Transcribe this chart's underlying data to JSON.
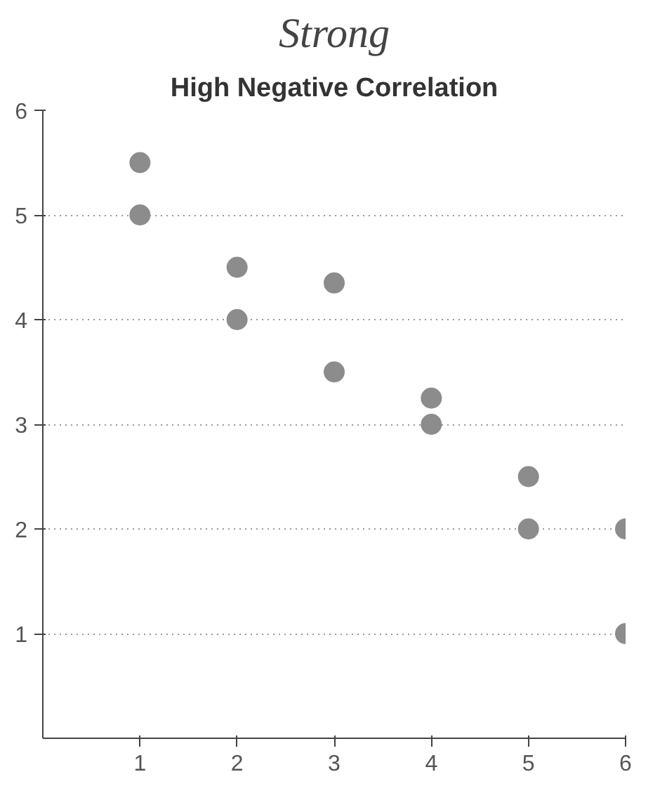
{
  "chart_data": {
    "type": "scatter",
    "title": "High Negative Correlation",
    "annotations": [
      "Strong"
    ],
    "x": [
      1,
      1,
      2,
      2,
      3,
      3,
      4,
      4,
      5,
      5,
      6,
      6
    ],
    "series": [
      {
        "color": "#8c8c8c",
        "values": [
          5.5,
          5,
          4.5,
          4,
          4.35,
          3.5,
          3.25,
          3,
          2.5,
          2,
          2,
          1
        ]
      }
    ],
    "xlim": [
      0,
      6
    ],
    "ylim": [
      0,
      6
    ],
    "xticks": [
      1,
      2,
      3,
      4,
      5,
      6
    ],
    "yticks": [
      1,
      2,
      3,
      4,
      5,
      6
    ],
    "grid": "y",
    "marker": "circle"
  }
}
